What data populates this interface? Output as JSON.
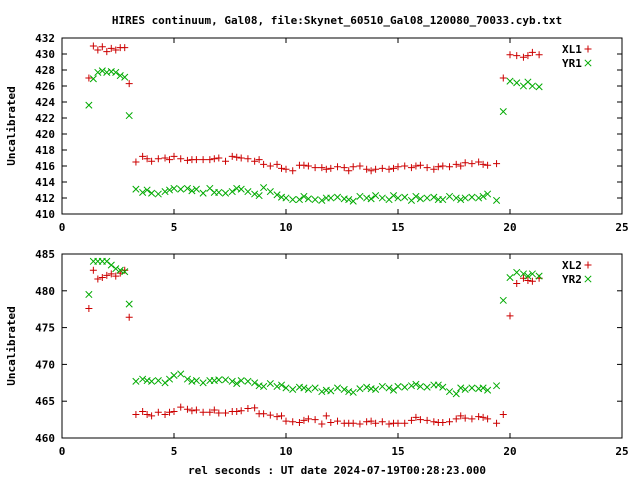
{
  "figure": {
    "title": "HIRES continuum, Gal08, file:Skynet_60510_Gal08_120080_70033.cyb.txt",
    "xlabel": "rel seconds : UT date 2024-07-19T00:28:23.000"
  },
  "chart_data": [
    {
      "type": "scatter",
      "ylabel": "Uncalibrated",
      "xlim": [
        0,
        25
      ],
      "ylim": [
        410,
        432
      ],
      "xticks": [
        0,
        5,
        10,
        15,
        20,
        25
      ],
      "yticks": [
        410,
        412,
        414,
        416,
        418,
        420,
        422,
        424,
        426,
        428,
        430,
        432
      ],
      "legend_position": "top-right",
      "series": [
        {
          "name": "XL1",
          "marker": "plus",
          "color": "#cc0000",
          "x": [
            1.2,
            1.4,
            1.6,
            1.8,
            2.0,
            2.2,
            2.4,
            2.6,
            2.8,
            3.0,
            3.3,
            3.6,
            3.8,
            4.0,
            4.3,
            4.6,
            4.8,
            5.0,
            5.3,
            5.6,
            5.8,
            6.0,
            6.3,
            6.6,
            6.8,
            7.0,
            7.3,
            7.6,
            7.8,
            8.0,
            8.3,
            8.6,
            8.8,
            9.0,
            9.3,
            9.6,
            9.8,
            10.0,
            10.3,
            10.6,
            10.8,
            11.0,
            11.3,
            11.6,
            11.8,
            12.0,
            12.3,
            12.6,
            12.8,
            13.0,
            13.3,
            13.6,
            13.8,
            14.0,
            14.3,
            14.6,
            14.8,
            15.0,
            15.3,
            15.6,
            15.8,
            16.0,
            16.3,
            16.6,
            16.8,
            17.0,
            17.3,
            17.6,
            17.8,
            18.0,
            18.3,
            18.6,
            18.8,
            19.0,
            19.4,
            19.7,
            20.0,
            20.3,
            20.6,
            20.8,
            21.0,
            21.3
          ],
          "y": [
            427.0,
            431.0,
            430.5,
            430.9,
            430.3,
            430.7,
            430.5,
            430.8,
            430.8,
            426.3,
            416.5,
            417.2,
            416.9,
            416.6,
            416.9,
            417.0,
            416.8,
            417.2,
            416.9,
            416.7,
            416.8,
            416.8,
            416.8,
            416.8,
            416.9,
            417.0,
            416.6,
            417.2,
            417.1,
            417.0,
            416.9,
            416.6,
            416.8,
            416.2,
            416.0,
            416.2,
            415.7,
            415.6,
            415.4,
            416.1,
            416.1,
            416.0,
            415.8,
            415.8,
            415.6,
            415.7,
            415.9,
            415.8,
            415.4,
            415.9,
            416.0,
            415.6,
            415.4,
            415.6,
            415.7,
            415.6,
            415.7,
            415.9,
            416.0,
            415.8,
            416.0,
            416.1,
            415.8,
            415.6,
            415.9,
            416.0,
            415.9,
            416.2,
            416.0,
            416.4,
            416.3,
            416.5,
            416.2,
            416.1,
            416.3,
            427.0,
            429.9,
            429.8,
            429.6,
            429.8,
            430.2,
            429.9
          ]
        },
        {
          "name": "YR1",
          "marker": "cross",
          "color": "#00aa00",
          "x": [
            1.2,
            1.4,
            1.6,
            1.8,
            2.0,
            2.2,
            2.4,
            2.6,
            2.8,
            3.0,
            3.3,
            3.6,
            3.8,
            4.0,
            4.3,
            4.6,
            4.8,
            5.0,
            5.3,
            5.6,
            5.8,
            6.0,
            6.3,
            6.6,
            6.8,
            7.0,
            7.3,
            7.6,
            7.8,
            8.0,
            8.3,
            8.6,
            8.8,
            9.0,
            9.3,
            9.6,
            9.8,
            10.0,
            10.3,
            10.6,
            10.8,
            11.0,
            11.3,
            11.6,
            11.8,
            12.0,
            12.3,
            12.6,
            12.8,
            13.0,
            13.3,
            13.6,
            13.8,
            14.0,
            14.3,
            14.6,
            14.8,
            15.0,
            15.3,
            15.6,
            15.8,
            16.0,
            16.3,
            16.6,
            16.8,
            17.0,
            17.3,
            17.6,
            17.8,
            18.0,
            18.3,
            18.6,
            18.8,
            19.0,
            19.4,
            19.7,
            20.0,
            20.3,
            20.6,
            20.8,
            21.0,
            21.3
          ],
          "y": [
            423.6,
            426.9,
            427.7,
            427.9,
            427.7,
            427.8,
            427.7,
            427.3,
            427.1,
            422.3,
            413.1,
            412.7,
            413.0,
            412.6,
            412.5,
            412.8,
            413.0,
            413.2,
            413.1,
            413.2,
            412.9,
            413.1,
            412.6,
            413.2,
            412.7,
            412.7,
            412.6,
            412.8,
            413.2,
            413.1,
            412.8,
            412.5,
            412.3,
            413.3,
            412.8,
            412.4,
            412.1,
            412.0,
            411.8,
            411.8,
            412.2,
            411.9,
            411.8,
            411.7,
            412.0,
            412.0,
            412.1,
            411.9,
            411.8,
            411.6,
            412.2,
            412.0,
            411.9,
            412.3,
            412.0,
            411.8,
            412.3,
            412.0,
            412.1,
            411.7,
            412.2,
            411.9,
            412.0,
            412.1,
            411.8,
            411.8,
            412.2,
            412.0,
            411.8,
            412.0,
            412.1,
            412.0,
            412.2,
            412.5,
            411.7,
            422.8,
            426.6,
            426.4,
            426.0,
            426.5,
            426.0,
            425.9
          ]
        }
      ]
    },
    {
      "type": "scatter",
      "ylabel": "Uncalibrated",
      "xlim": [
        0,
        25
      ],
      "ylim": [
        460,
        485
      ],
      "xticks": [
        0,
        5,
        10,
        15,
        20,
        25
      ],
      "yticks": [
        460,
        465,
        470,
        475,
        480,
        485
      ],
      "legend_position": "top-right",
      "series": [
        {
          "name": "XL2",
          "marker": "plus",
          "color": "#cc0000",
          "x": [
            1.2,
            1.4,
            1.6,
            1.8,
            2.0,
            2.2,
            2.4,
            2.6,
            2.8,
            3.0,
            3.3,
            3.6,
            3.8,
            4.0,
            4.3,
            4.6,
            4.8,
            5.0,
            5.3,
            5.6,
            5.8,
            6.0,
            6.3,
            6.6,
            6.8,
            7.0,
            7.3,
            7.6,
            7.8,
            8.0,
            8.3,
            8.6,
            8.8,
            9.0,
            9.3,
            9.6,
            9.8,
            10.0,
            10.3,
            10.6,
            10.8,
            11.0,
            11.3,
            11.6,
            11.8,
            12.0,
            12.3,
            12.6,
            12.8,
            13.0,
            13.3,
            13.6,
            13.8,
            14.0,
            14.3,
            14.6,
            14.8,
            15.0,
            15.3,
            15.6,
            15.8,
            16.0,
            16.3,
            16.6,
            16.8,
            17.0,
            17.3,
            17.6,
            17.8,
            18.0,
            18.3,
            18.6,
            18.8,
            19.0,
            19.4,
            19.7,
            20.0,
            20.3,
            20.6,
            20.8,
            21.0,
            21.3
          ],
          "y": [
            477.6,
            482.8,
            481.6,
            481.8,
            482.1,
            482.3,
            482.0,
            482.4,
            482.8,
            476.4,
            463.2,
            463.6,
            463.2,
            463.0,
            463.5,
            463.2,
            463.5,
            463.6,
            464.2,
            463.9,
            463.7,
            463.8,
            463.5,
            463.5,
            463.8,
            463.4,
            463.4,
            463.6,
            463.6,
            463.7,
            464.0,
            464.1,
            463.3,
            463.3,
            463.1,
            462.9,
            463.0,
            462.3,
            462.2,
            462.1,
            462.4,
            462.6,
            462.5,
            461.9,
            463.0,
            462.1,
            462.3,
            462.0,
            462.0,
            462.0,
            461.9,
            462.2,
            462.3,
            462.0,
            462.2,
            461.9,
            462.0,
            462.0,
            462.0,
            462.4,
            462.8,
            462.5,
            462.4,
            462.2,
            462.1,
            462.1,
            462.2,
            462.6,
            463.0,
            462.7,
            462.6,
            462.9,
            462.8,
            462.6,
            462.0,
            463.2,
            476.6,
            481.0,
            481.7,
            481.4,
            481.3,
            481.7
          ]
        },
        {
          "name": "YR2",
          "marker": "cross",
          "color": "#00aa00",
          "x": [
            1.2,
            1.4,
            1.6,
            1.8,
            2.0,
            2.2,
            2.4,
            2.6,
            2.8,
            3.0,
            3.3,
            3.6,
            3.8,
            4.0,
            4.3,
            4.6,
            4.8,
            5.0,
            5.3,
            5.6,
            5.8,
            6.0,
            6.3,
            6.6,
            6.8,
            7.0,
            7.3,
            7.6,
            7.8,
            8.0,
            8.3,
            8.6,
            8.8,
            9.0,
            9.3,
            9.6,
            9.8,
            10.0,
            10.3,
            10.6,
            10.8,
            11.0,
            11.3,
            11.6,
            11.8,
            12.0,
            12.3,
            12.6,
            12.8,
            13.0,
            13.3,
            13.6,
            13.8,
            14.0,
            14.3,
            14.6,
            14.8,
            15.0,
            15.3,
            15.6,
            15.8,
            16.0,
            16.3,
            16.6,
            16.8,
            17.0,
            17.3,
            17.6,
            17.8,
            18.0,
            18.3,
            18.6,
            18.8,
            19.0,
            19.4,
            19.7,
            20.0,
            20.3,
            20.6,
            20.8,
            21.0,
            21.3
          ],
          "y": [
            479.5,
            484.0,
            484.0,
            484.0,
            484.0,
            483.5,
            483.0,
            482.8,
            482.6,
            478.2,
            467.7,
            468.0,
            467.8,
            467.7,
            467.8,
            467.5,
            468.0,
            468.5,
            468.7,
            468.0,
            467.7,
            467.8,
            467.5,
            467.8,
            467.8,
            467.9,
            467.9,
            467.7,
            467.4,
            467.8,
            467.7,
            467.5,
            467.1,
            467.0,
            467.4,
            467.0,
            467.2,
            466.8,
            466.6,
            466.9,
            466.8,
            466.6,
            466.8,
            466.3,
            466.5,
            466.4,
            466.8,
            466.6,
            466.3,
            466.2,
            466.7,
            466.9,
            466.7,
            466.6,
            467.0,
            466.8,
            466.5,
            467.0,
            466.9,
            467.1,
            467.3,
            467.0,
            466.9,
            467.2,
            467.2,
            466.9,
            466.3,
            466.0,
            466.8,
            466.6,
            466.8,
            466.7,
            466.8,
            466.5,
            467.1,
            478.7,
            481.8,
            482.5,
            482.3,
            482.0,
            482.3,
            482.0
          ]
        }
      ]
    }
  ]
}
